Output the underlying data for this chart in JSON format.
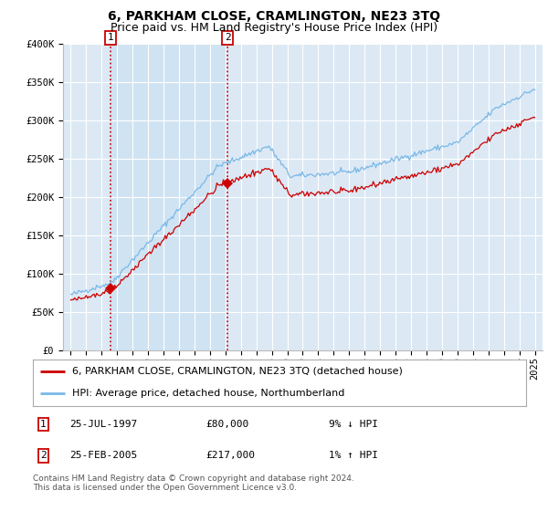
{
  "title": "6, PARKHAM CLOSE, CRAMLINGTON, NE23 3TQ",
  "subtitle": "Price paid vs. HM Land Registry's House Price Index (HPI)",
  "ylim": [
    0,
    400000
  ],
  "yticks": [
    0,
    50000,
    100000,
    150000,
    200000,
    250000,
    300000,
    350000,
    400000
  ],
  "ytick_labels": [
    "£0",
    "£50K",
    "£100K",
    "£150K",
    "£200K",
    "£250K",
    "£300K",
    "£350K",
    "£400K"
  ],
  "plot_bg_color": "#dce9f5",
  "shade_color": "#c8dff0",
  "grid_color": "#ffffff",
  "hpi_color": "#7ab8e8",
  "price_color": "#cc0000",
  "vline_color": "#cc0000",
  "annotation_box_color": "#cc0000",
  "legend_label_price": "6, PARKHAM CLOSE, CRAMLINGTON, NE23 3TQ (detached house)",
  "legend_label_hpi": "HPI: Average price, detached house, Northumberland",
  "sale1_year": 1997.56,
  "sale1_price": 80000,
  "sale1_date": "25-JUL-1997",
  "sale1_pct": "9% ↓ HPI",
  "sale2_year": 2005.14,
  "sale2_price": 217000,
  "sale2_date": "25-FEB-2005",
  "sale2_pct": "1% ↑ HPI",
  "footnote": "Contains HM Land Registry data © Crown copyright and database right 2024.\nThis data is licensed under the Open Government Licence v3.0.",
  "title_fontsize": 10,
  "subtitle_fontsize": 9,
  "tick_fontsize": 7.5,
  "legend_fontsize": 8,
  "footnote_fontsize": 6.5
}
